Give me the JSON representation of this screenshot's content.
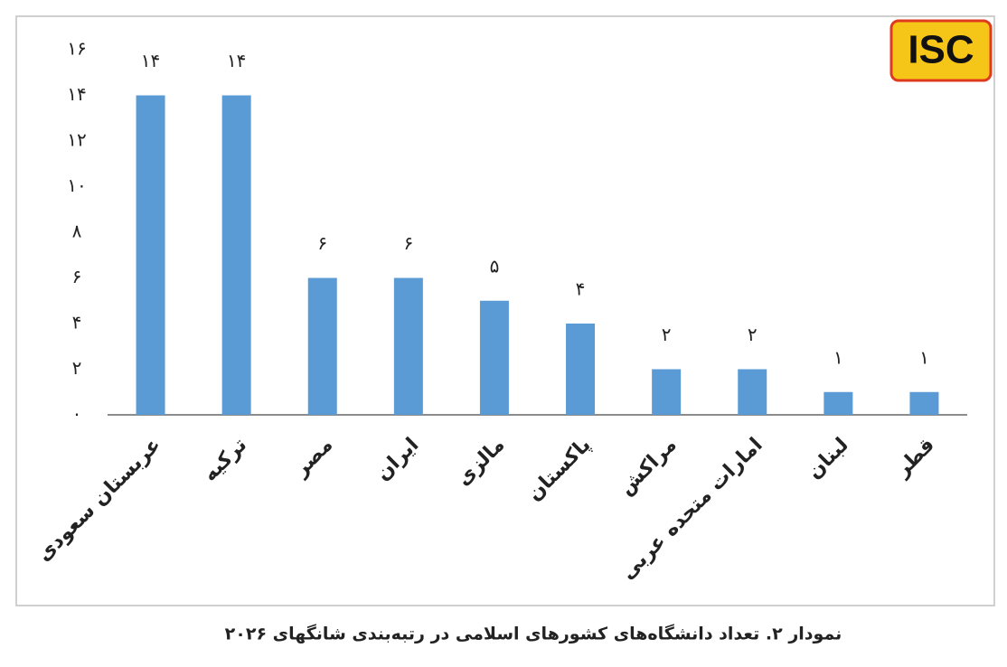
{
  "logo": "ISC",
  "chart_data": {
    "type": "bar",
    "title": "نمودار ۲. تعداد دانشگاه‌های کشورهای اسلامی در رتبه‌بندی شانگهای ۲۰۲۶",
    "categories": [
      "عربستان سعودی",
      "ترکیه",
      "مصر",
      "ایران",
      "مالزی",
      "پاکستان",
      "مراکش",
      "امارات متحده عربی",
      "لبنان",
      "قطر"
    ],
    "values": [
      14,
      14,
      6,
      6,
      5,
      4,
      2,
      2,
      1,
      1
    ],
    "value_labels": [
      "۱۴",
      "۱۴",
      "۶",
      "۶",
      "۵",
      "۴",
      "۲",
      "۲",
      "۱",
      "۱"
    ],
    "color": "#5b9bd5",
    "ylim": [
      0,
      16
    ],
    "yticks": [
      {
        "value": 0,
        "label": "۰"
      },
      {
        "value": 2,
        "label": "۲"
      },
      {
        "value": 4,
        "label": "۴"
      },
      {
        "value": 6,
        "label": "۶"
      },
      {
        "value": 8,
        "label": "۸"
      },
      {
        "value": 10,
        "label": "۱۰"
      },
      {
        "value": 12,
        "label": "۱۲"
      },
      {
        "value": 14,
        "label": "۱۴"
      },
      {
        "value": 16,
        "label": "۱۶"
      }
    ],
    "grid": false
  }
}
